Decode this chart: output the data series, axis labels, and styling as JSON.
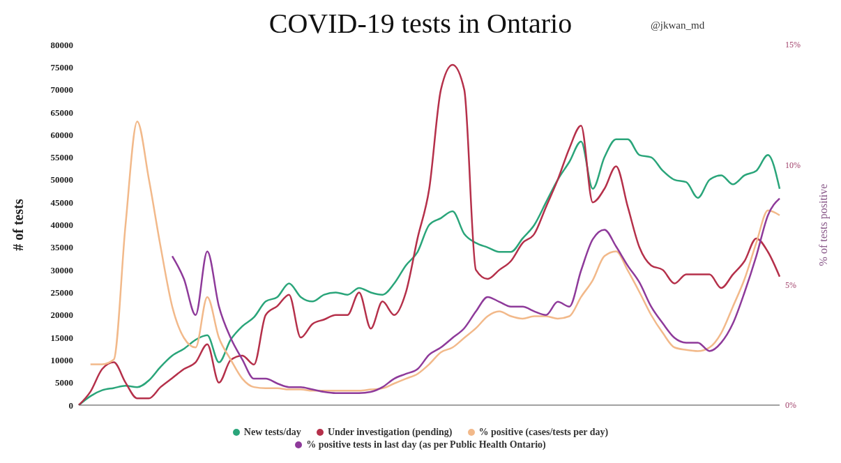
{
  "chart_data": {
    "type": "line",
    "title": "COVID-19 tests in Ontario",
    "ylabel": "# of tests",
    "y2label": "% of tests positive",
    "annotations": [
      "@jkwan_md"
    ],
    "categories": [
      null,
      null,
      null,
      null,
      null,
      null,
      null,
      null,
      null,
      null,
      null,
      null,
      null,
      null,
      null,
      null,
      null,
      null,
      null,
      null,
      null,
      null,
      null,
      null,
      null,
      null,
      null,
      null,
      null,
      null,
      null,
      null,
      null,
      null,
      null,
      null,
      null,
      null,
      null,
      null,
      null,
      null,
      null,
      null,
      null,
      null,
      null,
      null,
      null,
      null,
      null,
      null,
      null,
      null,
      null,
      null,
      null,
      null,
      null,
      null,
      null
    ],
    "series": [
      {
        "name": "New tests/day",
        "color": "#2aa57a",
        "values": [
          0,
          2000,
          3300,
          3800,
          4300,
          4000,
          5500,
          8500,
          11000,
          12500,
          14500,
          15500,
          9500,
          14500,
          17500,
          19500,
          23000,
          24000,
          27000,
          24000,
          23000,
          24500,
          25000,
          24500,
          26000,
          25000,
          24500,
          27000,
          31000,
          34000,
          40000,
          41500,
          43000,
          38000,
          36000,
          35000,
          34000,
          34000,
          37000,
          40000,
          45000,
          50000,
          54000,
          58500,
          48000,
          55000,
          59000,
          59000,
          55500,
          55000,
          52000,
          50000,
          49500,
          46000,
          50000,
          51000,
          49000,
          51000,
          52000,
          55500,
          48000
        ]
      },
      {
        "name": "Under investigation (pending)",
        "color": "#b5304a",
        "values": [
          0,
          3000,
          8000,
          9500,
          5000,
          1500,
          1500,
          4000,
          6000,
          8000,
          9500,
          13500,
          5000,
          10000,
          11000,
          9000,
          20000,
          22000,
          24500,
          15000,
          18000,
          19000,
          20000,
          20000,
          25000,
          17000,
          23000,
          20000,
          25000,
          37000,
          48000,
          70000,
          75500,
          70000,
          30000,
          28000,
          30000,
          32000,
          36000,
          38000,
          44000,
          50000,
          57000,
          62000,
          45000,
          48000,
          53000,
          44000,
          35000,
          31000,
          30000,
          27000,
          29000,
          29000,
          29000,
          26000,
          29000,
          32000,
          37000,
          34000,
          28500
        ]
      },
      {
        "name": "% positive (cases/tests per day)",
        "color": "#f2b98a",
        "axis": "y2",
        "values": [
          null,
          1.7,
          1.7,
          1.9,
          7.5,
          11.8,
          9.4,
          6.6,
          4.1,
          2.8,
          2.4,
          4.5,
          2.8,
          1.9,
          1.1,
          0.75,
          0.7,
          0.7,
          0.65,
          0.65,
          0.6,
          0.6,
          0.6,
          0.6,
          0.6,
          0.65,
          0.7,
          0.9,
          1.1,
          1.3,
          1.7,
          2.2,
          2.4,
          2.8,
          3.2,
          3.7,
          3.9,
          3.7,
          3.6,
          3.7,
          3.7,
          3.6,
          3.7,
          4.5,
          5.2,
          6.2,
          6.4,
          5.6,
          4.7,
          3.75,
          3.0,
          2.4,
          2.3,
          2.25,
          2.4,
          3.0,
          4.1,
          5.25,
          6.75,
          8.1,
          7.9
        ]
      },
      {
        "name": "% positive tests in last day (as per Public Health Ontario)",
        "color": "#8e3a9a",
        "axis": "y2",
        "values": [
          null,
          null,
          null,
          null,
          null,
          null,
          null,
          null,
          6.2,
          5.25,
          3.75,
          6.4,
          4.1,
          2.8,
          1.9,
          1.1,
          1.1,
          0.9,
          0.75,
          0.75,
          0.65,
          0.55,
          0.5,
          0.5,
          0.5,
          0.55,
          0.75,
          1.1,
          1.3,
          1.5,
          2.1,
          2.4,
          2.8,
          3.2,
          3.9,
          4.5,
          4.3,
          4.1,
          4.1,
          3.9,
          3.75,
          4.3,
          4.1,
          5.6,
          6.9,
          7.3,
          6.6,
          5.8,
          5.1,
          4.1,
          3.4,
          2.8,
          2.6,
          2.6,
          2.25,
          2.6,
          3.4,
          4.7,
          6.2,
          7.9,
          8.6
        ]
      }
    ],
    "ylim": [
      0,
      80000
    ],
    "yticks": [
      0,
      5000,
      10000,
      15000,
      20000,
      25000,
      30000,
      35000,
      40000,
      45000,
      50000,
      55000,
      60000,
      65000,
      70000,
      75000,
      80000
    ],
    "y2lim": [
      0,
      15
    ],
    "y2ticks": [
      {
        "value": 0,
        "label": "0%"
      },
      {
        "value": 5,
        "label": "5%"
      },
      {
        "value": 10,
        "label": "10%"
      },
      {
        "value": 15,
        "label": "15%"
      }
    ],
    "grid": false,
    "legend": "bottom",
    "marker": "none",
    "line_style": "solid"
  }
}
